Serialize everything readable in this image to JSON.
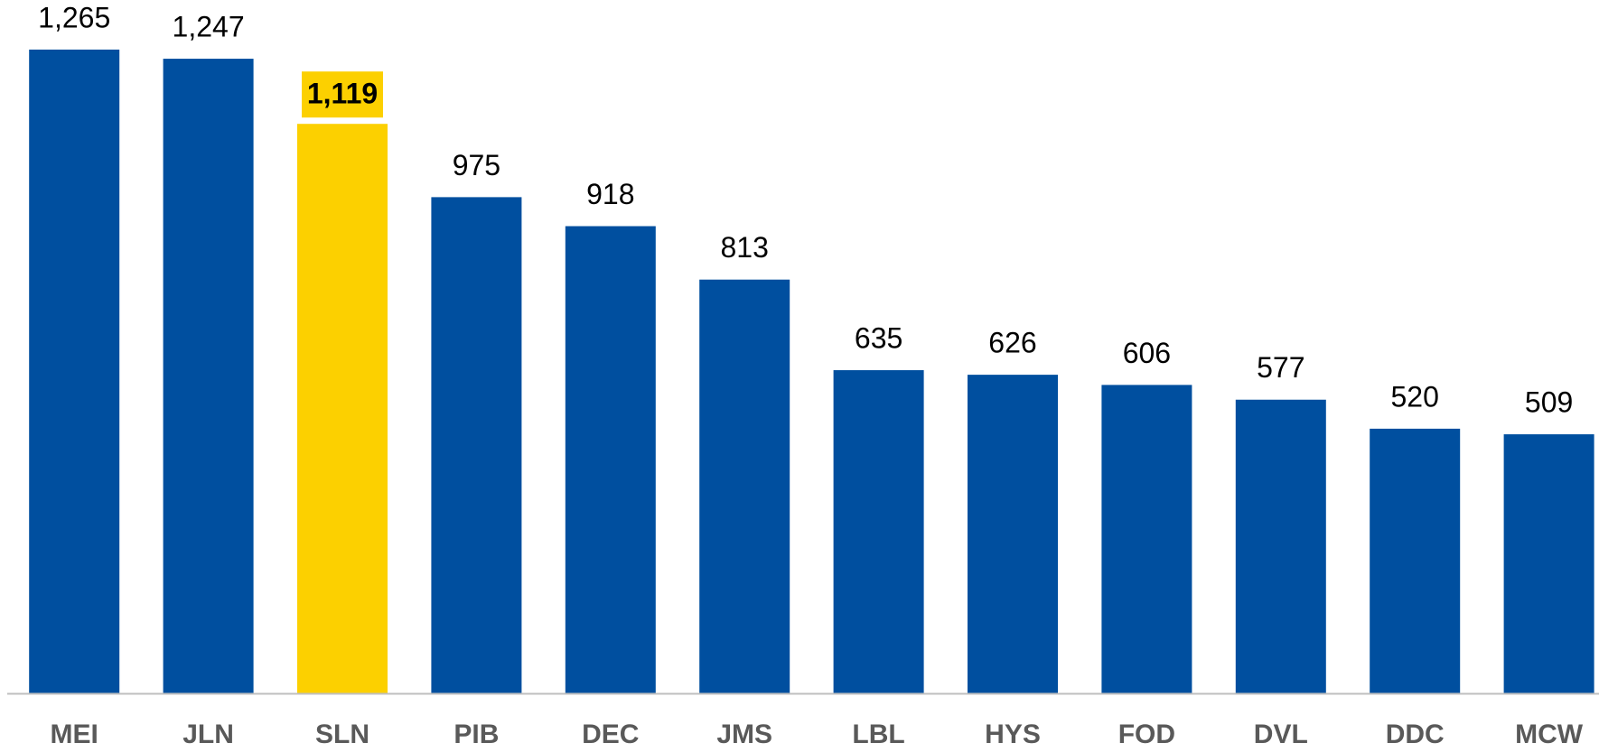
{
  "chart_data": {
    "type": "bar",
    "categories": [
      "MEI",
      "JLN",
      "SLN",
      "PIB",
      "DEC",
      "JMS",
      "LBL",
      "HYS",
      "FOD",
      "DVL",
      "DDC",
      "MCW"
    ],
    "values": [
      1265,
      1247,
      1119,
      975,
      918,
      813,
      635,
      626,
      606,
      577,
      520,
      509
    ],
    "value_labels": [
      "1,265",
      "1,247",
      "1,119",
      "975",
      "918",
      "813",
      "635",
      "626",
      "606",
      "577",
      "520",
      "509"
    ],
    "colors": [
      "#004f9f",
      "#004f9f",
      "#fcd000",
      "#004f9f",
      "#004f9f",
      "#004f9f",
      "#004f9f",
      "#004f9f",
      "#004f9f",
      "#004f9f",
      "#004f9f",
      "#004f9f"
    ],
    "highlight_color": "#fcd000",
    "ylim": [
      0,
      1350
    ]
  }
}
